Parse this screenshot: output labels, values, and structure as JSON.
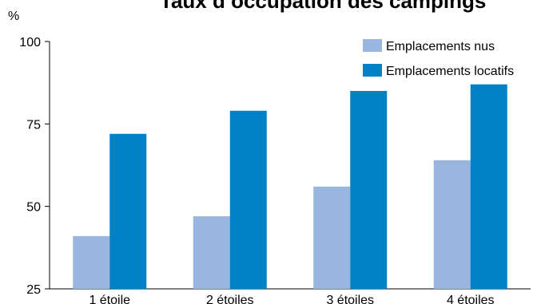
{
  "chart_data": {
    "type": "bar",
    "title": "Taux d’occupation des campings",
    "unit_label": "%",
    "categories": [
      "1 étoile",
      "2 étoiles",
      "3 étoiles",
      "4 étoiles"
    ],
    "series": [
      {
        "name": "Emplacements nus",
        "values": [
          41,
          47,
          56,
          64
        ],
        "color": "#98b6e0"
      },
      {
        "name": "Emplacements locatifs",
        "values": [
          72,
          79,
          85,
          87
        ],
        "color": "#0081c6"
      }
    ],
    "ylim": [
      25,
      100
    ],
    "yticks": [
      25,
      50,
      75,
      100
    ],
    "grid": false,
    "legend_position": "top-right"
  }
}
